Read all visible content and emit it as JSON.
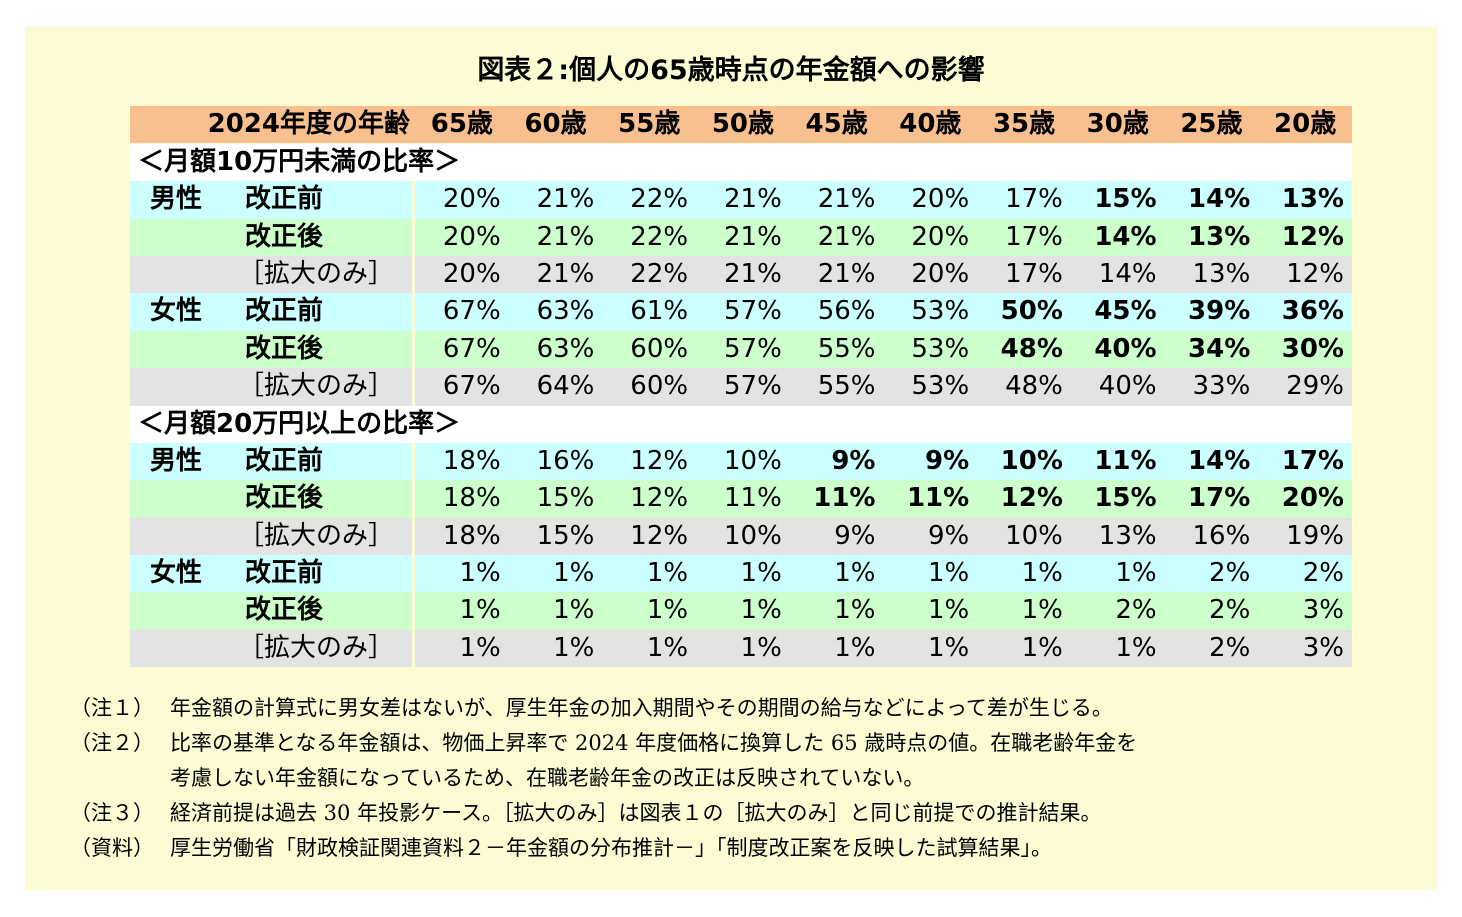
{
  "title": "図表２:個人の65歳時点の年金額への影響",
  "table": {
    "corner": "2024年度の年齢",
    "ages": [
      "65歳",
      "60歳",
      "55歳",
      "50歳",
      "45歳",
      "40歳",
      "35歳",
      "30歳",
      "25歳",
      "20歳"
    ],
    "sections": [
      {
        "title": "＜月額10万円未満の比率＞",
        "groups": [
          {
            "gender": "男性",
            "rows": [
              {
                "label": "改正前",
                "values": [
                  "20%",
                  "21%",
                  "22%",
                  "21%",
                  "21%",
                  "20%",
                  "17%",
                  "15%",
                  "14%",
                  "13%"
                ],
                "bold_from": 7
              },
              {
                "label": "改正後",
                "values": [
                  "20%",
                  "21%",
                  "22%",
                  "21%",
                  "21%",
                  "20%",
                  "17%",
                  "14%",
                  "13%",
                  "12%"
                ],
                "bold_from": 7
              },
              {
                "label": "［拡大のみ］",
                "values": [
                  "20%",
                  "21%",
                  "22%",
                  "21%",
                  "21%",
                  "20%",
                  "17%",
                  "14%",
                  "13%",
                  "12%"
                ]
              }
            ]
          },
          {
            "gender": "女性",
            "rows": [
              {
                "label": "改正前",
                "values": [
                  "67%",
                  "63%",
                  "61%",
                  "57%",
                  "56%",
                  "53%",
                  "50%",
                  "45%",
                  "39%",
                  "36%"
                ],
                "bold_from": 6
              },
              {
                "label": "改正後",
                "values": [
                  "67%",
                  "63%",
                  "60%",
                  "57%",
                  "55%",
                  "53%",
                  "48%",
                  "40%",
                  "34%",
                  "30%"
                ],
                "bold_from": 6
              },
              {
                "label": "［拡大のみ］",
                "values": [
                  "67%",
                  "64%",
                  "60%",
                  "57%",
                  "55%",
                  "53%",
                  "48%",
                  "40%",
                  "33%",
                  "29%"
                ]
              }
            ]
          }
        ]
      },
      {
        "title": "＜月額20万円以上の比率＞",
        "groups": [
          {
            "gender": "男性",
            "rows": [
              {
                "label": "改正前",
                "values": [
                  "18%",
                  "16%",
                  "12%",
                  "10%",
                  "9%",
                  "9%",
                  "10%",
                  "11%",
                  "14%",
                  "17%"
                ],
                "bold_from": 4
              },
              {
                "label": "改正後",
                "values": [
                  "18%",
                  "15%",
                  "12%",
                  "11%",
                  "11%",
                  "11%",
                  "12%",
                  "15%",
                  "17%",
                  "20%"
                ],
                "bold_from": 4
              },
              {
                "label": "［拡大のみ］",
                "values": [
                  "18%",
                  "15%",
                  "12%",
                  "10%",
                  "9%",
                  "9%",
                  "10%",
                  "13%",
                  "16%",
                  "19%"
                ]
              }
            ]
          },
          {
            "gender": "女性",
            "rows": [
              {
                "label": "改正前",
                "values": [
                  "1%",
                  "1%",
                  "1%",
                  "1%",
                  "1%",
                  "1%",
                  "1%",
                  "1%",
                  "2%",
                  "2%"
                ]
              },
              {
                "label": "改正後",
                "values": [
                  "1%",
                  "1%",
                  "1%",
                  "1%",
                  "1%",
                  "1%",
                  "1%",
                  "2%",
                  "2%",
                  "3%"
                ]
              },
              {
                "label": "［拡大のみ］",
                "values": [
                  "1%",
                  "1%",
                  "1%",
                  "1%",
                  "1%",
                  "1%",
                  "1%",
                  "1%",
                  "2%",
                  "3%"
                ]
              }
            ]
          }
        ]
      }
    ]
  },
  "notes": [
    {
      "label": "（注１）",
      "lines": [
        "年金額の計算式に男女差はないが、厚生年金の加入期間やその期間の給与などによって差が生じる。"
      ]
    },
    {
      "label": "（注２）",
      "lines": [
        "比率の基準となる年金額は、物価上昇率で 2024 年度価格に換算した 65 歳時点の値。在職老齢年金を",
        "考慮しない年金額になっているため、在職老齢年金の改正は反映されていない。"
      ]
    },
    {
      "label": "（注３）",
      "lines": [
        "経済前提は過去 30 年投影ケース。［拡大のみ］は図表１の［拡大のみ］と同じ前提での推計結果。"
      ]
    },
    {
      "label": "（資料）",
      "lines": [
        "厚生労働省「財政検証関連資料２－年金額の分布推計－」「制度改正案を反映した試算結果」。"
      ]
    }
  ]
}
